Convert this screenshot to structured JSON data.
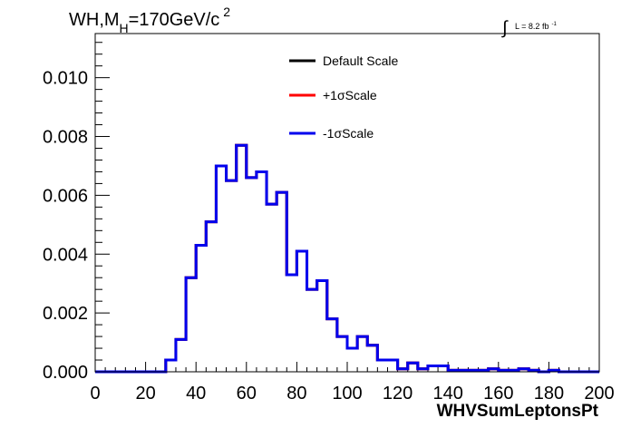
{
  "title_main": "WH,M",
  "title_sub": "H",
  "title_rest": "=170GeV/c",
  "title_sup": "2",
  "lumi_symbol": "∫",
  "lumi_label": "L = 8.2 fb",
  "lumi_sup": "-1",
  "chart_data": {
    "type": "line",
    "style": "step histogram",
    "xlabel": "WHVSumLeptonsPt",
    "ylabel": "",
    "xlim": [
      0,
      200
    ],
    "ylim": [
      0,
      0.0115
    ],
    "x_ticks": [
      0,
      20,
      40,
      60,
      80,
      100,
      120,
      140,
      160,
      180,
      200
    ],
    "x_tick_labels": [
      "0",
      "20",
      "40",
      "60",
      "80",
      "100",
      "120",
      "140",
      "160",
      "180",
      "200"
    ],
    "y_ticks": [
      0,
      0.002,
      0.004,
      0.006,
      0.008,
      0.01
    ],
    "y_tick_labels": [
      "0.000",
      "0.002",
      "0.004",
      "0.006",
      "0.008",
      "0.010"
    ],
    "bin_width": 4,
    "bin_edges_start": 0,
    "legend_position": "top-center",
    "series": [
      {
        "name": "Default Scale",
        "color": "#000000",
        "values": [
          0,
          0,
          0,
          0,
          0,
          0,
          0,
          0.0004,
          0.0011,
          0.0032,
          0.0043,
          0.0051,
          0.007,
          0.0065,
          0.0077,
          0.0066,
          0.0068,
          0.0057,
          0.0061,
          0.0033,
          0.0041,
          0.0028,
          0.0031,
          0.0018,
          0.0012,
          0.0008,
          0.0012,
          0.0009,
          0.0004,
          0.0004,
          0.0001,
          0.0003,
          0.0001,
          0.0002,
          0.0002,
          5e-05,
          5e-05,
          5e-05,
          5e-05,
          0.0001,
          5e-05,
          5e-05,
          0.0001,
          5e-05,
          0,
          5e-05,
          0,
          0,
          0,
          0
        ]
      },
      {
        "name": "+1σScale",
        "color": "#ff0000",
        "values": [
          0,
          0,
          0,
          0,
          0,
          0,
          0,
          0.0004,
          0.0011,
          0.0032,
          0.0043,
          0.0051,
          0.007,
          0.0065,
          0.0077,
          0.0066,
          0.0068,
          0.0057,
          0.0061,
          0.0033,
          0.0041,
          0.0028,
          0.0031,
          0.0018,
          0.0012,
          0.0008,
          0.0012,
          0.0009,
          0.0004,
          0.0004,
          0.0001,
          0.0003,
          0.0001,
          0.0002,
          0.0002,
          5e-05,
          5e-05,
          5e-05,
          5e-05,
          0.0001,
          5e-05,
          5e-05,
          0.0001,
          5e-05,
          0,
          5e-05,
          0,
          0,
          0,
          0
        ]
      },
      {
        "name": "-1σScale",
        "color": "#0000ee",
        "values": [
          0,
          0,
          0,
          0,
          0,
          0,
          0,
          0.0004,
          0.0011,
          0.0032,
          0.0043,
          0.0051,
          0.007,
          0.0065,
          0.0077,
          0.0066,
          0.0068,
          0.0057,
          0.0061,
          0.0033,
          0.0041,
          0.0028,
          0.0031,
          0.0018,
          0.0012,
          0.0008,
          0.0012,
          0.0009,
          0.0004,
          0.0004,
          0.0001,
          0.0003,
          0.0001,
          0.0002,
          0.0002,
          5e-05,
          5e-05,
          5e-05,
          5e-05,
          0.0001,
          5e-05,
          5e-05,
          0.0001,
          5e-05,
          0,
          5e-05,
          0,
          0,
          0,
          0
        ]
      }
    ]
  }
}
